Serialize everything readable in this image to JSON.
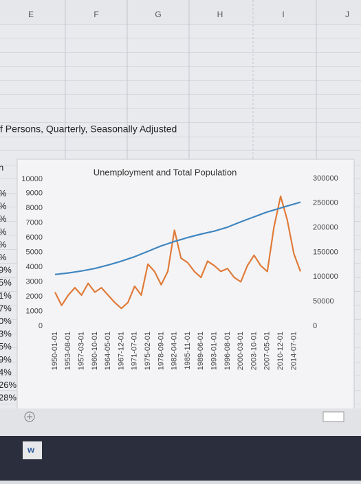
{
  "sheet": {
    "columns": [
      "E",
      "F",
      "G",
      "H",
      "I",
      "J"
    ],
    "cell_text": "f Persons, Quarterly, Seasonally Adjusted",
    "left_cells": [
      "n",
      "%",
      "%",
      "%",
      "%",
      "%",
      "%",
      "9%",
      "5%",
      "1%",
      "7%",
      "0%",
      "3%",
      "5%",
      "9%",
      "4%",
      "26%",
      "28%"
    ]
  },
  "chart_data": {
    "type": "line",
    "title": "Unemployment and Total Population",
    "categories": [
      "1950-01-01",
      null,
      "1953-08-01",
      null,
      "1957-03-01",
      null,
      "1960-10-01",
      null,
      "1964-05-01",
      null,
      "1967-12-01",
      null,
      "1971-07-01",
      null,
      "1975-02-01",
      null,
      "1978-09-01",
      null,
      "1982-04-01",
      null,
      "1985-11-01",
      null,
      "1989-06-01",
      null,
      "1993-01-01",
      null,
      "1996-08-01",
      null,
      "2000-03-01",
      null,
      "2003-10-01",
      null,
      "2007-05-01",
      null,
      "2010-12-01",
      null,
      "2014-07-01",
      null
    ],
    "series": [
      {
        "color": "#e07b39",
        "values": [
          2300,
          1400,
          2100,
          2600,
          2100,
          2900,
          2300,
          2600,
          2100,
          1600,
          1200,
          1600,
          2700,
          2100,
          4200,
          3700,
          2800,
          3700,
          6500,
          4600,
          4300,
          3700,
          3300,
          4400,
          4100,
          3700,
          3900,
          3300,
          3000,
          4100,
          4800,
          4100,
          3700,
          6700,
          8800,
          7200,
          4900,
          3700
        ]
      },
      {
        "color": "#3f86c0",
        "axis": "y2",
        "values": [
          105000,
          106500,
          108000,
          110000,
          112000,
          114500,
          117000,
          120500,
          124000,
          128000,
          132000,
          136500,
          141000,
          146500,
          152000,
          157500,
          163000,
          167500,
          172000,
          176000,
          180000,
          183500,
          187000,
          190000,
          193000,
          197000,
          201000,
          206500,
          212000,
          217000,
          222000,
          227000,
          232000,
          236000,
          240000,
          244000,
          248000,
          252000
        ]
      }
    ],
    "ylim": [
      0,
      10000
    ],
    "yticks": [
      0,
      1000,
      2000,
      3000,
      4000,
      5000,
      6000,
      7000,
      8000,
      9000,
      10000
    ],
    "y2lim": [
      0,
      300000
    ],
    "y2ticks": [
      0,
      50000,
      100000,
      150000,
      200000,
      250000,
      300000
    ]
  }
}
